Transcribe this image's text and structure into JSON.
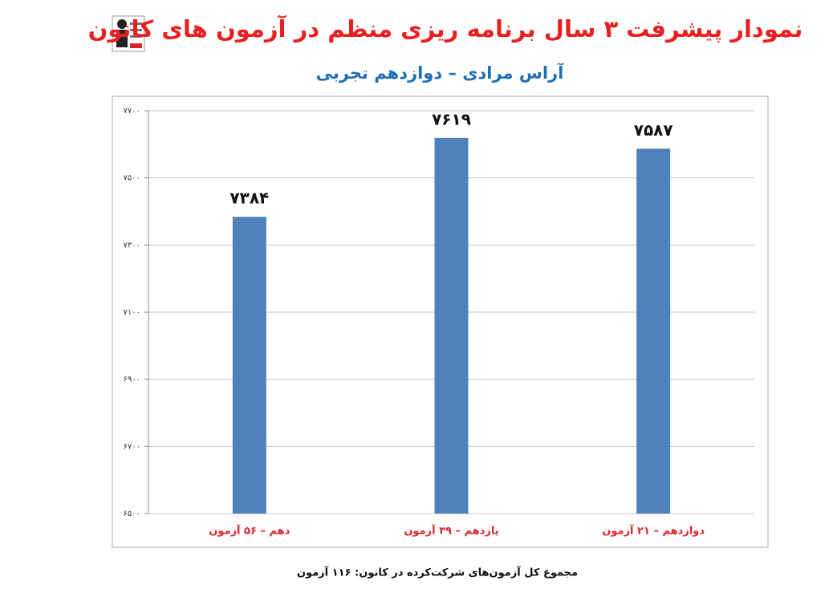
{
  "chart_data": {
    "type": "bar",
    "title": "نمودار پیشرفت ۳ سال برنامه ریزی منظم در آزمون های کانون",
    "subtitle": "آراس مرادی – دوازدهم تجربی",
    "note": "مجموع کل آزمون‌های شرکت‌کرده در کانون: ۱۱۶ آزمون",
    "categories": [
      "دهم – ۵۶ آزمون",
      "یازدهم – ۳۹ آزمون",
      "دوازدهم – ۲۱ آزمون"
    ],
    "values": [
      7384,
      7619,
      7587
    ],
    "value_labels": [
      "۷۳۸۴",
      "۷۶۱۹",
      "۷۵۸۷"
    ],
    "color": "#4f81bd",
    "ylim": [
      6500,
      7700
    ],
    "yticks": [
      {
        "value": 6500,
        "label": "۶۵۰۰"
      },
      {
        "value": 6700,
        "label": "۶۷۰۰"
      },
      {
        "value": 6900,
        "label": "۶۹۰۰"
      },
      {
        "value": 7100,
        "label": "۷۱۰۰"
      },
      {
        "value": 7300,
        "label": "۷۳۰۰"
      },
      {
        "value": 7500,
        "label": "۷۵۰۰"
      },
      {
        "value": 7700,
        "label": "۷۷۰۰"
      }
    ],
    "grid": true
  }
}
